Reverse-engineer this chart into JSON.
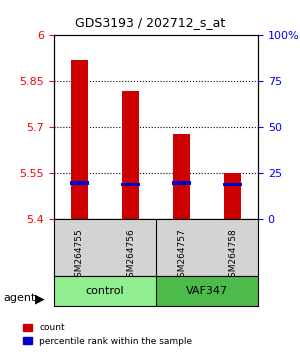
{
  "title": "GDS3193 / 202712_s_at",
  "samples": [
    "GSM264755",
    "GSM264756",
    "GSM264757",
    "GSM264758"
  ],
  "groups": [
    "control",
    "control",
    "VAF347",
    "VAF347"
  ],
  "group_colors": {
    "control": "#90EE90",
    "VAF347": "#00CC00"
  },
  "counts": [
    5.92,
    5.82,
    5.68,
    5.55
  ],
  "percentile_ranks": [
    20,
    19,
    20,
    19
  ],
  "y_min": 5.4,
  "y_max": 6.0,
  "y_ticks": [
    5.4,
    5.55,
    5.7,
    5.85,
    6.0
  ],
  "y_tick_labels": [
    "5.4",
    "5.55",
    "5.7",
    "5.85",
    "6"
  ],
  "right_y_ticks": [
    0,
    25,
    50,
    75,
    100
  ],
  "right_y_labels": [
    "0",
    "25",
    "50",
    "75",
    "100%"
  ],
  "bar_color": "#CC0000",
  "percentile_color": "#0000CC",
  "background_color": "#FFFFFF",
  "grid_color": "#000000",
  "legend_count_label": "count",
  "legend_percentile_label": "percentile rank within the sample"
}
